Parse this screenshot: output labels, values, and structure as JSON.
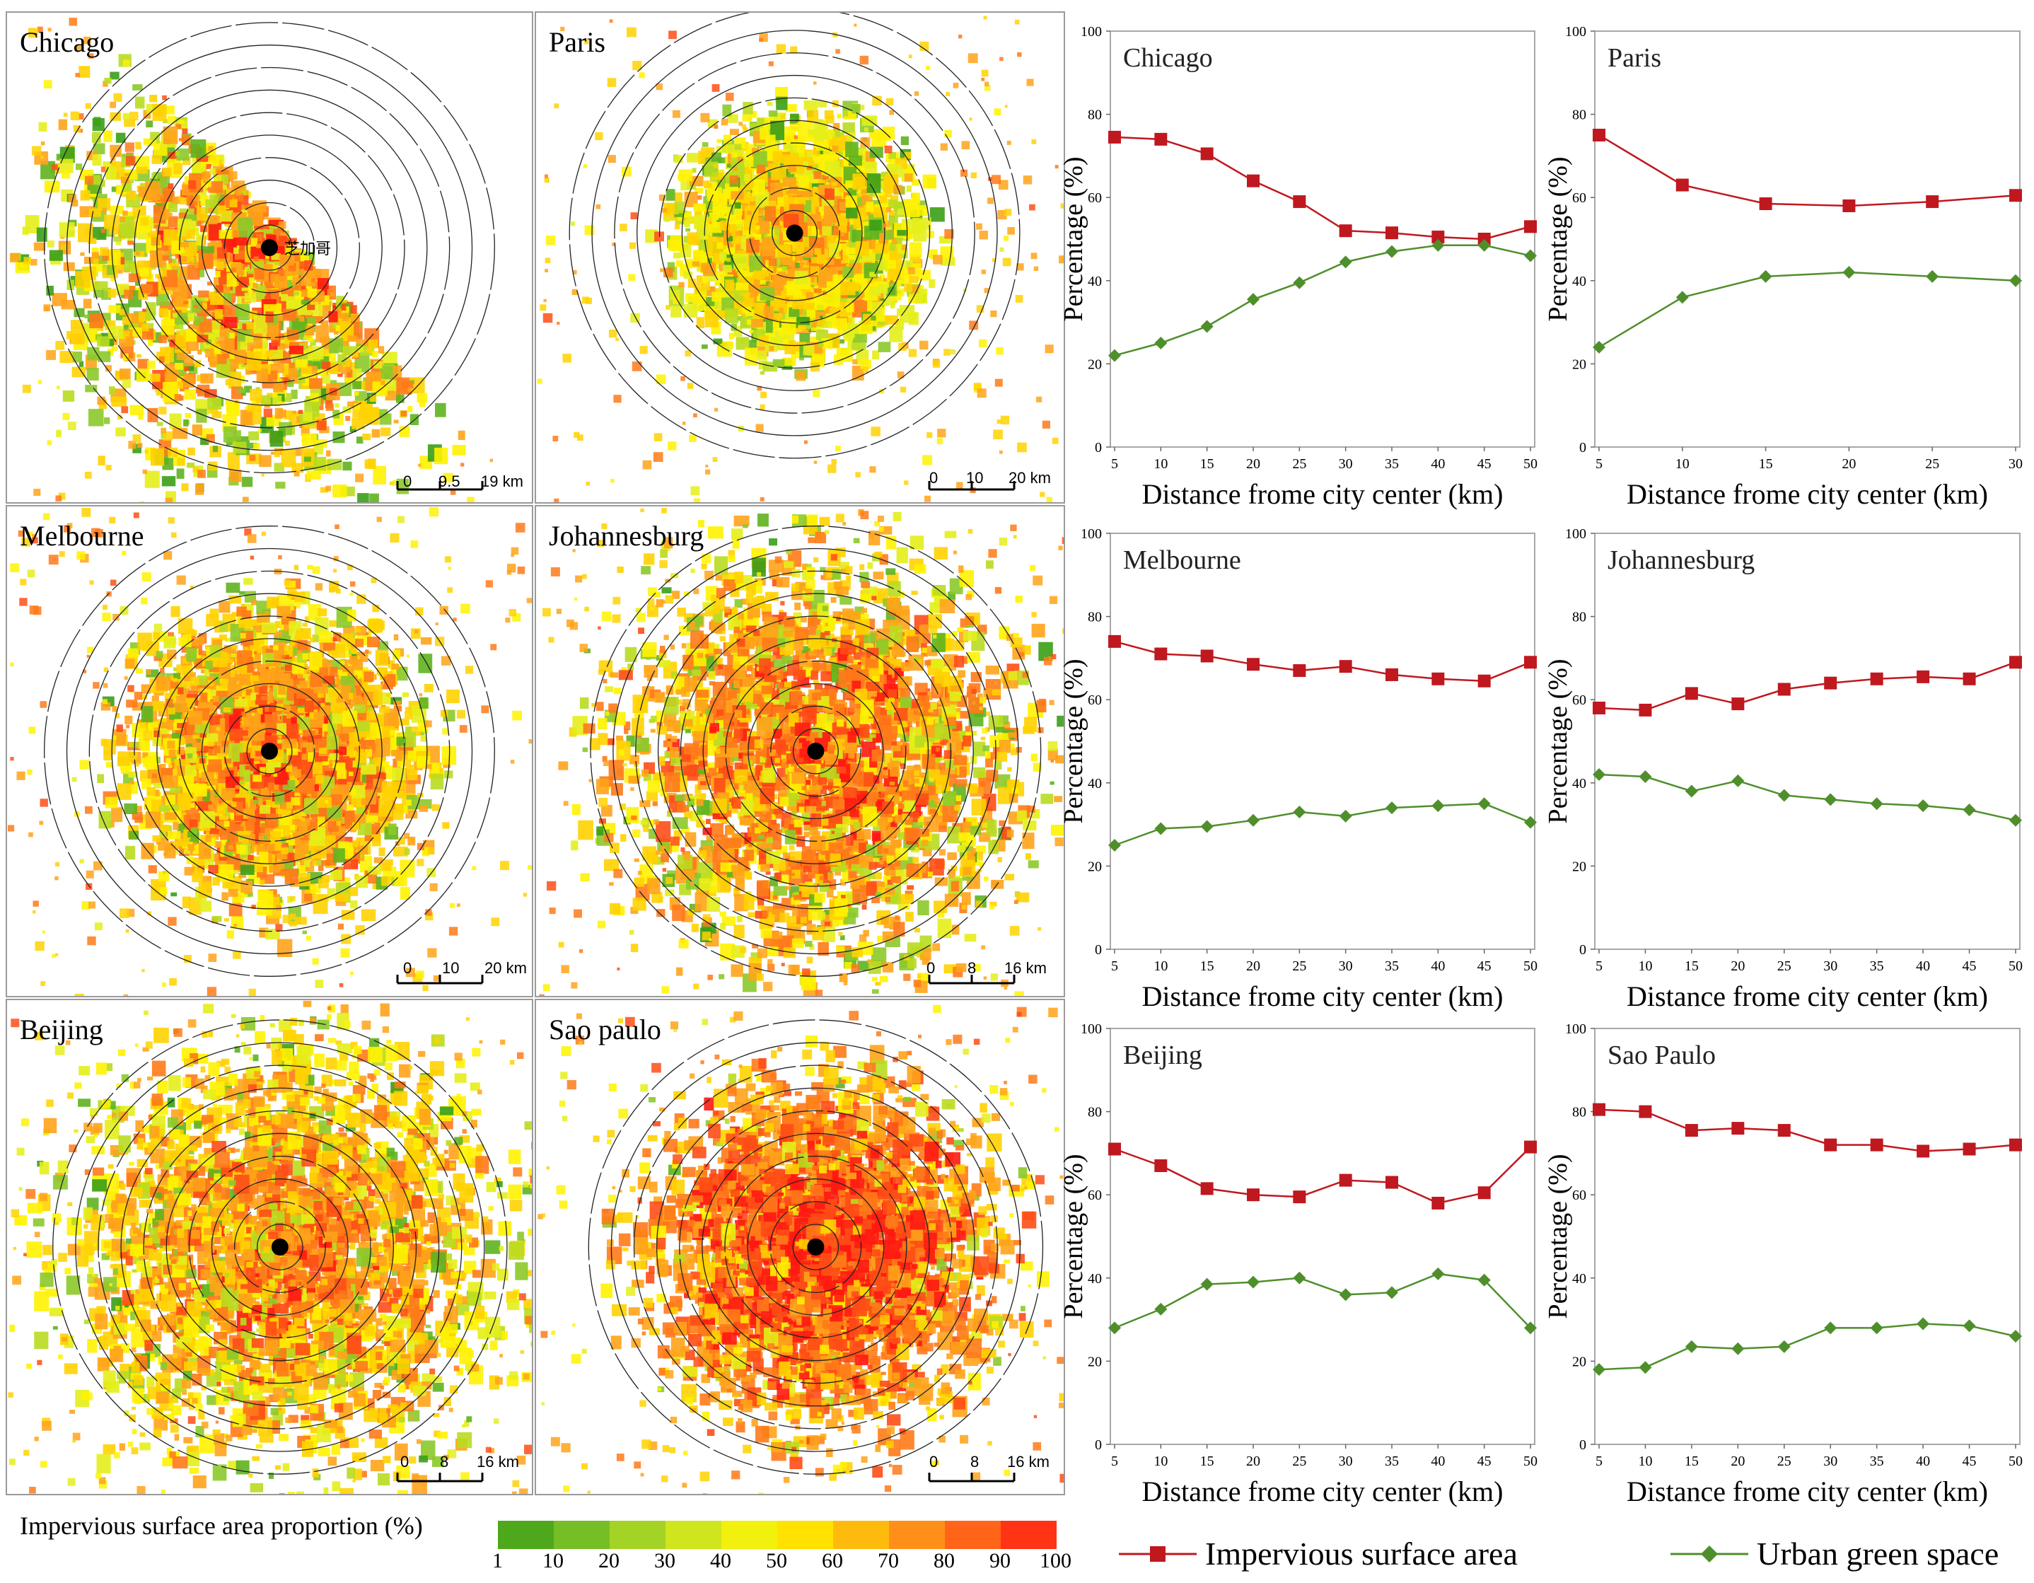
{
  "maps": [
    {
      "title": "Chicago",
      "scale": [
        "0",
        "9.5",
        "19 km"
      ],
      "center_label": "芝加哥",
      "shape": "chicago"
    },
    {
      "title": "Paris",
      "scale": [
        "0",
        "10",
        "20 km"
      ],
      "shape": "paris"
    },
    {
      "title": "Melbourne",
      "scale": [
        "0",
        "10",
        "20 km"
      ],
      "shape": "melbourne"
    },
    {
      "title": "Johannesburg",
      "scale": [
        "0",
        "8",
        "16 km"
      ],
      "shape": "johannesburg"
    },
    {
      "title": "Beijing",
      "scale": [
        "0",
        "8",
        "16 km"
      ],
      "shape": "beijing"
    },
    {
      "title": "Sao paulo",
      "scale": [
        "0",
        "8",
        "16 km"
      ],
      "shape": "saopaulo"
    }
  ],
  "legend": {
    "title": "Impervious surface area proportion (%)",
    "ticks": [
      "1",
      "10",
      "20",
      "30",
      "40",
      "50",
      "60",
      "70",
      "80",
      "90",
      "100"
    ],
    "colors": [
      "#3a9e17",
      "#5fb31f",
      "#8cc92a",
      "#b9dc20",
      "#e4ee1a",
      "#fff200",
      "#ffd200",
      "#ffa319",
      "#ff7a19",
      "#ff4d16",
      "#ff1a12"
    ],
    "series_names": [
      "Impervious surface area",
      "Urban green space"
    ],
    "series_colors": [
      "#c0181f",
      "#4f8f2b"
    ]
  },
  "chart_data": [
    {
      "type": "line",
      "title": "Chicago",
      "x": [
        5,
        10,
        15,
        20,
        25,
        30,
        35,
        40,
        45,
        50
      ],
      "series": [
        {
          "name": "Impervious surface area",
          "values": [
            74.5,
            74,
            70.5,
            64,
            59,
            52,
            51.5,
            50.5,
            50,
            53
          ]
        },
        {
          "name": "Urban green space",
          "values": [
            22,
            25,
            29,
            35.5,
            39.5,
            44.5,
            47,
            48.5,
            48.5,
            46
          ]
        }
      ],
      "xlabel": "Distance frome city center (km)",
      "ylabel": "Percentage (%)",
      "ylim": [
        0,
        100
      ],
      "yticks": [
        0,
        20,
        40,
        60,
        80,
        100
      ]
    },
    {
      "type": "line",
      "title": "Paris",
      "x": [
        5,
        10,
        15,
        20,
        25,
        30
      ],
      "series": [
        {
          "name": "Impervious surface area",
          "values": [
            75,
            63,
            58.5,
            58,
            59,
            60.5
          ]
        },
        {
          "name": "Urban green space",
          "values": [
            24,
            36,
            41,
            42,
            41,
            40
          ]
        }
      ],
      "xlabel": "Distance frome city center (km)",
      "ylabel": "Percentage (%)",
      "ylim": [
        0,
        100
      ],
      "yticks": [
        0,
        20,
        40,
        60,
        80,
        100
      ]
    },
    {
      "type": "line",
      "title": "Melbourne",
      "x": [
        5,
        10,
        15,
        20,
        25,
        30,
        35,
        40,
        45,
        50
      ],
      "series": [
        {
          "name": "Impervious surface area",
          "values": [
            74,
            71,
            70.5,
            68.5,
            67,
            68,
            66,
            65,
            64.5,
            69
          ]
        },
        {
          "name": "Urban green space",
          "values": [
            25,
            29,
            29.5,
            31,
            33,
            32,
            34,
            34.5,
            35,
            30.5
          ]
        }
      ],
      "xlabel": "Distance frome city center (km)",
      "ylabel": "Percentage (%)",
      "ylim": [
        0,
        100
      ],
      "yticks": [
        0,
        20,
        40,
        60,
        80,
        100
      ]
    },
    {
      "type": "line",
      "title": "Johannesburg",
      "x": [
        5,
        10,
        15,
        20,
        25,
        30,
        35,
        40,
        45,
        50
      ],
      "series": [
        {
          "name": "Impervious surface area",
          "values": [
            58,
            57.5,
            61.5,
            59,
            62.5,
            64,
            65,
            65.5,
            65,
            69
          ]
        },
        {
          "name": "Urban green space",
          "values": [
            42,
            41.5,
            38,
            40.5,
            37,
            36,
            35,
            34.5,
            33.5,
            31
          ]
        }
      ],
      "xlabel": "Distance frome city center (km)",
      "ylabel": "Percentage (%)",
      "ylim": [
        0,
        100
      ],
      "yticks": [
        0,
        20,
        40,
        60,
        80,
        100
      ]
    },
    {
      "type": "line",
      "title": "Beijing",
      "x": [
        5,
        10,
        15,
        20,
        25,
        30,
        35,
        40,
        45,
        50
      ],
      "series": [
        {
          "name": "Impervious surface area",
          "values": [
            71,
            67,
            61.5,
            60,
            59.5,
            63.5,
            63,
            58,
            60.5,
            71.5
          ]
        },
        {
          "name": "Urban green space",
          "values": [
            28,
            32.5,
            38.5,
            39,
            40,
            36,
            36.5,
            41,
            39.5,
            28
          ]
        }
      ],
      "xlabel": "Distance frome city center (km)",
      "ylabel": "Percentage (%)",
      "ylim": [
        0,
        100
      ],
      "yticks": [
        0,
        20,
        40,
        60,
        80,
        100
      ]
    },
    {
      "type": "line",
      "title": "Sao Paulo",
      "x": [
        5,
        10,
        15,
        20,
        25,
        30,
        35,
        40,
        45,
        50
      ],
      "series": [
        {
          "name": "Impervious surface area",
          "values": [
            80.5,
            80,
            75.5,
            76,
            75.5,
            72,
            72,
            70.5,
            71,
            72
          ]
        },
        {
          "name": "Urban green space",
          "values": [
            18,
            18.5,
            23.5,
            23,
            23.5,
            28,
            28,
            29,
            28.5,
            26
          ]
        }
      ],
      "xlabel": "Distance frome city center (km)",
      "ylabel": "Percentage (%)",
      "ylim": [
        0,
        100
      ],
      "yticks": [
        0,
        20,
        40,
        60,
        80,
        100
      ]
    }
  ]
}
